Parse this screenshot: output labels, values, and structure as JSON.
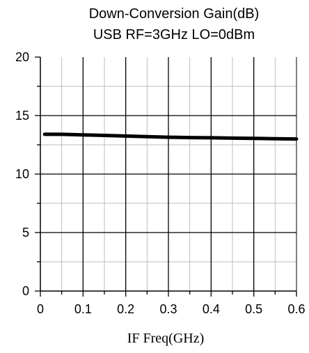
{
  "chart_data": {
    "type": "line",
    "title": "Down-Conversion Gain(dB)",
    "subtitle": "USB RF=3GHz LO=0dBm",
    "xlabel": "IF Freq(GHz)",
    "ylabel": "",
    "xlim": [
      0,
      0.6
    ],
    "ylim": [
      0,
      20
    ],
    "x_ticks": [
      0,
      0.1,
      0.2,
      0.3,
      0.4,
      0.5,
      0.6
    ],
    "x_tick_labels": [
      "0",
      "0.1",
      "0.2",
      "0.3",
      "0.4",
      "0.5",
      "0.6"
    ],
    "y_ticks": [
      0,
      5,
      10,
      15,
      20
    ],
    "y_tick_labels": [
      "0",
      "5",
      "10",
      "15",
      "20"
    ],
    "x_minor_step": 0.05,
    "y_minor_step": 2.5,
    "grid": true,
    "legend": "none",
    "line_color": "#000000",
    "grid_major_color": "#000000",
    "grid_minor_color": "#bdbdbd",
    "series": [
      {
        "x": [
          0.01,
          0.05,
          0.1,
          0.15,
          0.2,
          0.25,
          0.3,
          0.35,
          0.4,
          0.45,
          0.5,
          0.55,
          0.6
        ],
        "values": [
          13.4,
          13.4,
          13.35,
          13.3,
          13.25,
          13.2,
          13.15,
          13.12,
          13.1,
          13.07,
          13.05,
          13.02,
          13.0
        ]
      }
    ]
  }
}
